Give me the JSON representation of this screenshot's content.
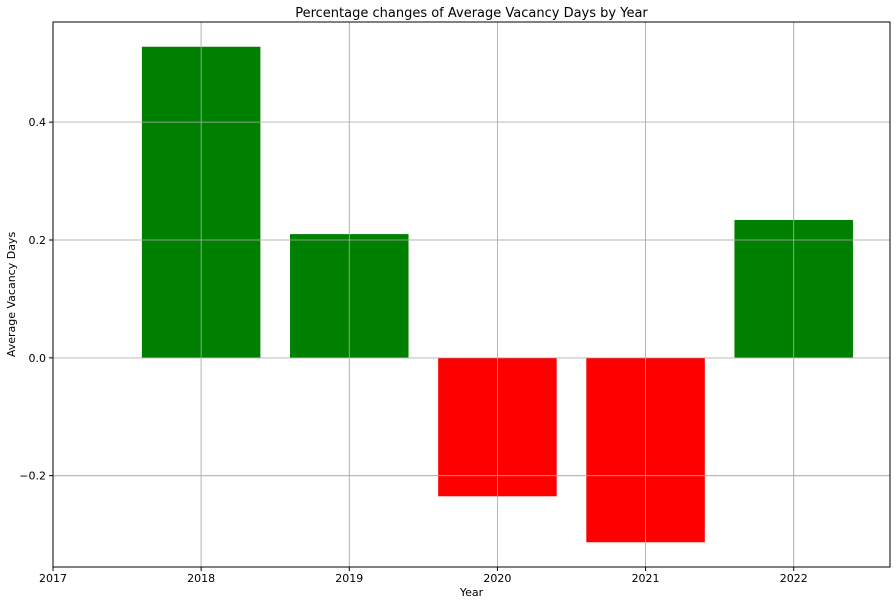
{
  "chart_data": {
    "type": "bar",
    "title": "Percentage changes of Average Vacancy Days by Year",
    "xlabel": "Year",
    "ylabel": "Average Vacancy Days",
    "categories": [
      "2018",
      "2019",
      "2020",
      "2021",
      "2022"
    ],
    "x": [
      2018,
      2019,
      2020,
      2021,
      2022
    ],
    "values": [
      0.528,
      0.21,
      -0.235,
      -0.313,
      0.234
    ],
    "bar_colors": [
      "#008000",
      "#008000",
      "#ff0000",
      "#ff0000",
      "#008000"
    ],
    "positive_color": "#008000",
    "negative_color": "#ff0000",
    "xlim": [
      2017,
      2022.65
    ],
    "ylim": [
      -0.355,
      0.57
    ],
    "xticks": [
      2017,
      2018,
      2019,
      2020,
      2021,
      2022
    ],
    "xtick_labels": [
      "2017",
      "2018",
      "2019",
      "2020",
      "2021",
      "2022"
    ],
    "yticks": [
      -0.2,
      0.0,
      0.2,
      0.4
    ],
    "ytick_labels": [
      "−0.2",
      "0.0",
      "0.2",
      "0.4"
    ],
    "grid": true
  }
}
